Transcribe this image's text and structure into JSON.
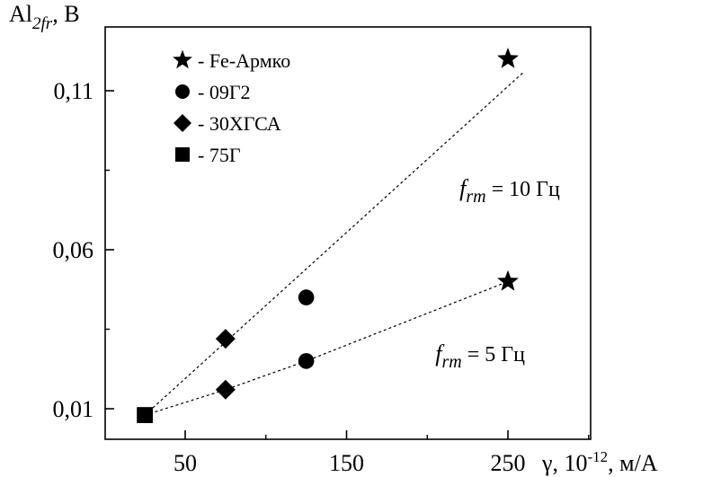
{
  "chart_data": {
    "type": "scatter",
    "x_ticks": [
      "50",
      "150",
      "250"
    ],
    "y_ticks": [
      "0,01",
      "0,06",
      "0,11"
    ],
    "xlim": [
      0,
      300
    ],
    "ylim": [
      0,
      0.13
    ],
    "x_tick_values": [
      50,
      150,
      250
    ],
    "y_tick_values": [
      0.01,
      0.06,
      0.11
    ],
    "ylabel": {
      "prefix": "Al",
      "sub": "2fr",
      "suffix": ", В"
    },
    "xlabel": {
      "prefix": "γ, 10",
      "sup": "-12",
      "suffix": ", м/А"
    },
    "legend": [
      {
        "marker": "star-icon",
        "label": "- Fe-Армко"
      },
      {
        "marker": "circle-icon",
        "label": "- 09Г2"
      },
      {
        "marker": "diamond-icon",
        "label": "- 30ХГСА"
      },
      {
        "marker": "square-icon",
        "label": "- 75Г"
      }
    ],
    "series": [
      {
        "group": "10 Гц",
        "points": [
          {
            "material": "75Г",
            "marker": "square",
            "x": 25,
            "y": 0.008
          },
          {
            "material": "30ХГСА",
            "marker": "diamond",
            "x": 75,
            "y": 0.032
          },
          {
            "material": "09Г2",
            "marker": "circle",
            "x": 125,
            "y": 0.045
          },
          {
            "material": "Fe-Армко",
            "marker": "star",
            "x": 250,
            "y": 0.12
          }
        ],
        "trend": {
          "x": [
            25,
            260
          ],
          "y": [
            0.008,
            0.116
          ]
        }
      },
      {
        "group": "5 Гц",
        "points": [
          {
            "material": "75Г",
            "marker": "square",
            "x": 25,
            "y": 0.008
          },
          {
            "material": "30ХГСА",
            "marker": "diamond",
            "x": 75,
            "y": 0.016
          },
          {
            "material": "09Г2",
            "marker": "circle",
            "x": 125,
            "y": 0.025
          },
          {
            "material": "Fe-Армко",
            "marker": "star",
            "x": 250,
            "y": 0.05
          }
        ],
        "trend": {
          "x": [
            25,
            75,
            125,
            250
          ],
          "y": [
            0.008,
            0.016,
            0.025,
            0.05
          ]
        }
      }
    ],
    "annotations": [
      {
        "name": "10 Гц",
        "f": "f",
        "sub": "rm",
        "rest": " = 10 Гц",
        "x": 220,
        "y": 0.077
      },
      {
        "name": "5 Гц",
        "f": "f",
        "sub": "rm",
        "rest": " = 5 Гц",
        "x": 205,
        "y": 0.025
      }
    ]
  }
}
